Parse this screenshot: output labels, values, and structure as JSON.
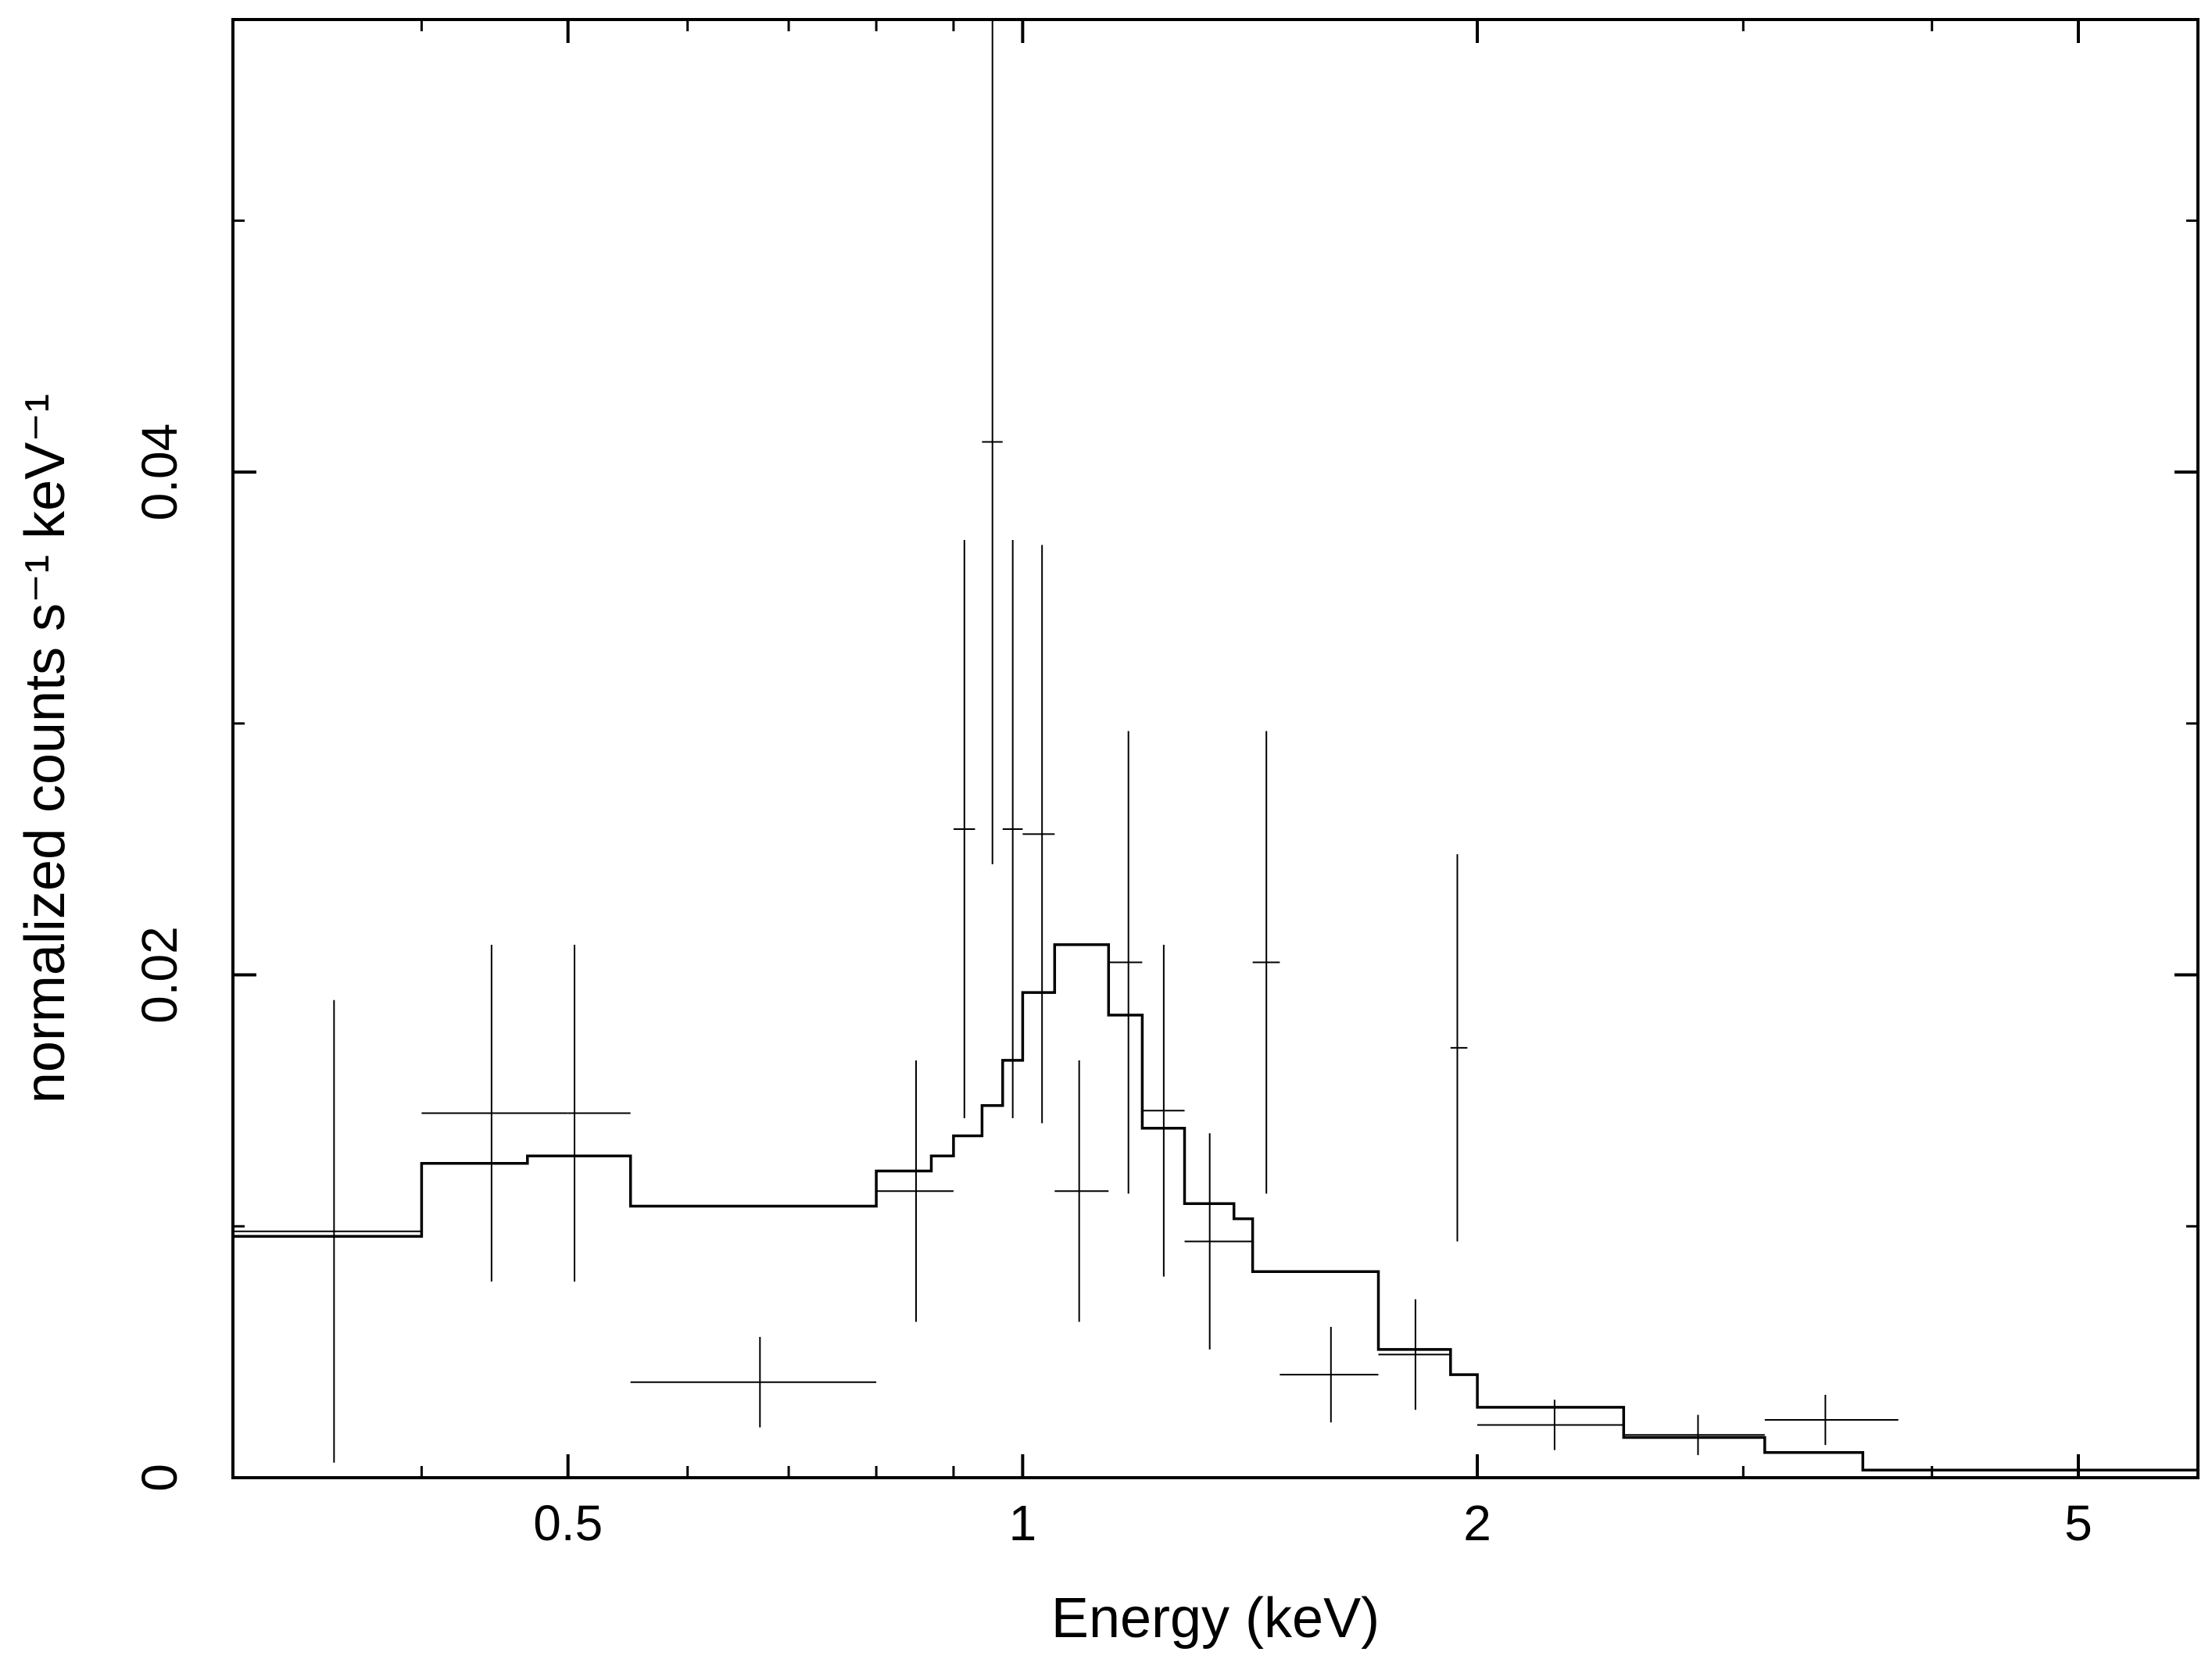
{
  "chart_data": {
    "type": "line",
    "xlabel": "Energy (keV)",
    "ylabel": "normalized counts s⁻¹ keV⁻¹",
    "title": "",
    "x_scale": "log",
    "xlim": [
      0.3,
      6.0
    ],
    "ylim": [
      0,
      0.058
    ],
    "x_tick_labels": [
      {
        "value": 0.5,
        "label": "0.5"
      },
      {
        "value": 1,
        "label": "1"
      },
      {
        "value": 2,
        "label": "2"
      },
      {
        "value": 5,
        "label": "5"
      }
    ],
    "x_minor_ticks": [
      0.4,
      0.6,
      0.7,
      0.8,
      0.9,
      3,
      4
    ],
    "y_tick_labels": [
      {
        "value": 0,
        "label": "0"
      },
      {
        "value": 0.02,
        "label": "0.02"
      },
      {
        "value": 0.04,
        "label": "0.04"
      }
    ],
    "y_minor_ticks": [
      0.01,
      0.03,
      0.05
    ],
    "series": [
      {
        "kind": "data_with_errors",
        "points": [
          {
            "x": 0.35,
            "xlo": 0.3,
            "xhi": 0.4,
            "y": 0.0098,
            "yerr": 0.0092
          },
          {
            "x": 0.445,
            "xlo": 0.4,
            "xhi": 0.5,
            "y": 0.0145,
            "yerr": 0.0067
          },
          {
            "x": 0.505,
            "xlo": 0.5,
            "xhi": 0.55,
            "y": 0.0145,
            "yerr": 0.0067
          },
          {
            "x": 0.67,
            "xlo": 0.55,
            "xhi": 0.8,
            "y": 0.0038,
            "yerr": 0.0018
          },
          {
            "x": 0.85,
            "xlo": 0.8,
            "xhi": 0.9,
            "y": 0.0114,
            "yerr": 0.0052
          },
          {
            "x": 0.915,
            "xlo": 0.9,
            "xhi": 0.93,
            "y": 0.0258,
            "yerr": 0.0115
          },
          {
            "x": 0.955,
            "xlo": 0.94,
            "xhi": 0.97,
            "y": 0.0412,
            "yerr": 0.0168
          },
          {
            "x": 0.985,
            "xlo": 0.97,
            "xhi": 1.0,
            "y": 0.0258,
            "yerr": 0.0115
          },
          {
            "x": 1.03,
            "xlo": 1.0,
            "xhi": 1.05,
            "y": 0.0256,
            "yerr": 0.0115
          },
          {
            "x": 1.09,
            "xlo": 1.05,
            "xhi": 1.14,
            "y": 0.0114,
            "yerr": 0.0052
          },
          {
            "x": 1.175,
            "xlo": 1.14,
            "xhi": 1.2,
            "y": 0.0205,
            "yerr": 0.0092
          },
          {
            "x": 1.24,
            "xlo": 1.2,
            "xhi": 1.28,
            "y": 0.0146,
            "yerr": 0.0066
          },
          {
            "x": 1.33,
            "xlo": 1.28,
            "xhi": 1.42,
            "y": 0.0094,
            "yerr": 0.0043
          },
          {
            "x": 1.45,
            "xlo": 1.42,
            "xhi": 1.48,
            "y": 0.0205,
            "yerr": 0.0092
          },
          {
            "x": 1.6,
            "xlo": 1.48,
            "xhi": 1.72,
            "y": 0.0041,
            "yerr": 0.0019
          },
          {
            "x": 1.82,
            "xlo": 1.72,
            "xhi": 1.92,
            "y": 0.0049,
            "yerr": 0.0022
          },
          {
            "x": 1.94,
            "xlo": 1.92,
            "xhi": 1.97,
            "y": 0.0171,
            "yerr": 0.0077
          },
          {
            "x": 2.25,
            "xlo": 2.0,
            "xhi": 2.5,
            "y": 0.0021,
            "yerr": 0.001
          },
          {
            "x": 2.8,
            "xlo": 2.5,
            "xhi": 3.1,
            "y": 0.0017,
            "yerr": 0.0008
          },
          {
            "x": 3.4,
            "xlo": 3.1,
            "xhi": 3.8,
            "y": 0.0023,
            "yerr": 0.001
          },
          {
            "x": 5.0,
            "xlo": 3.8,
            "xhi": 6.0,
            "y": 0.0003,
            "yerr": 0.0002
          }
        ]
      },
      {
        "kind": "model_histogram",
        "bins": [
          {
            "xlo": 0.3,
            "xhi": 0.4,
            "y": 0.0096
          },
          {
            "xlo": 0.4,
            "xhi": 0.47,
            "y": 0.0125
          },
          {
            "xlo": 0.47,
            "xhi": 0.55,
            "y": 0.0128
          },
          {
            "xlo": 0.55,
            "xhi": 0.8,
            "y": 0.0108
          },
          {
            "xlo": 0.8,
            "xhi": 0.87,
            "y": 0.0122
          },
          {
            "xlo": 0.87,
            "xhi": 0.9,
            "y": 0.0128
          },
          {
            "xlo": 0.9,
            "xhi": 0.94,
            "y": 0.0136
          },
          {
            "xlo": 0.94,
            "xhi": 0.97,
            "y": 0.0148
          },
          {
            "xlo": 0.97,
            "xhi": 1.0,
            "y": 0.0166
          },
          {
            "xlo": 1.0,
            "xhi": 1.05,
            "y": 0.0193
          },
          {
            "xlo": 1.05,
            "xhi": 1.14,
            "y": 0.0212
          },
          {
            "xlo": 1.14,
            "xhi": 1.2,
            "y": 0.0184
          },
          {
            "xlo": 1.2,
            "xhi": 1.28,
            "y": 0.0139
          },
          {
            "xlo": 1.28,
            "xhi": 1.38,
            "y": 0.0109
          },
          {
            "xlo": 1.38,
            "xhi": 1.42,
            "y": 0.0103
          },
          {
            "xlo": 1.42,
            "xhi": 1.72,
            "y": 0.0082
          },
          {
            "xlo": 1.72,
            "xhi": 1.92,
            "y": 0.0051
          },
          {
            "xlo": 1.92,
            "xhi": 2.0,
            "y": 0.0041
          },
          {
            "xlo": 2.0,
            "xhi": 2.5,
            "y": 0.0028
          },
          {
            "xlo": 2.5,
            "xhi": 3.1,
            "y": 0.0016
          },
          {
            "xlo": 3.1,
            "xhi": 3.6,
            "y": 0.001
          },
          {
            "xlo": 3.6,
            "xhi": 6.0,
            "y": 0.0003
          }
        ]
      }
    ],
    "grid": false,
    "legend": "none"
  }
}
